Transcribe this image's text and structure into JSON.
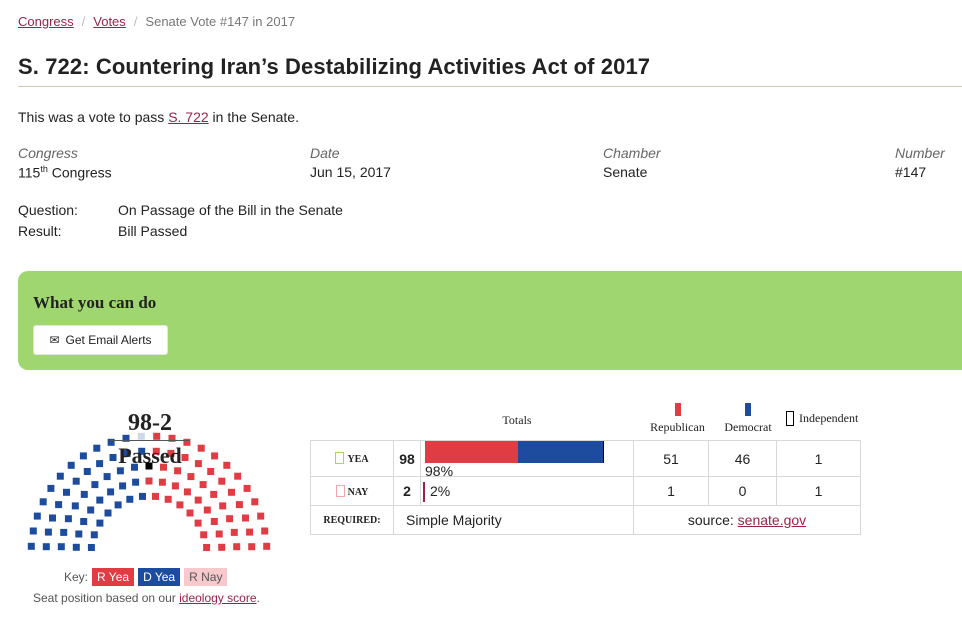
{
  "breadcrumb": {
    "items": [
      "Congress",
      "Votes"
    ],
    "current": "Senate Vote #147 in 2017",
    "separator": "/"
  },
  "title": "S. 722: Countering Iran’s Destabilizing Activities Act of 2017",
  "intro": {
    "before": "This was a vote to pass ",
    "link": "S. 722",
    "after": " in the Senate."
  },
  "meta": {
    "congress": {
      "label": "Congress",
      "value_num": "115",
      "value_sup": "th",
      "value_rest": " Congress"
    },
    "date": {
      "label": "Date",
      "value": "Jun 15, 2017"
    },
    "chamber": {
      "label": "Chamber",
      "value": "Senate"
    },
    "number": {
      "label": "Number",
      "value": "#147"
    }
  },
  "question": {
    "label": "Question:",
    "value": "On Passage of the Bill in the Senate"
  },
  "result": {
    "label": "Result:",
    "value": "Bill Passed"
  },
  "action_box": {
    "title": "What you can do",
    "button": "Get Email Alerts",
    "icon": "envelope-icon"
  },
  "tally": {
    "score": "98-2",
    "status": "Passed"
  },
  "key": {
    "label": "Key:",
    "r_yea": "R Yea",
    "d_yea": "D Yea",
    "r_nay": "R Nay"
  },
  "seat_note": {
    "before": "Seat position based on our ",
    "link": "ideology score",
    "after": "."
  },
  "table": {
    "totals_header": "Totals",
    "parties": [
      "Republican",
      "Democrat",
      "Independent"
    ],
    "yea": {
      "label": "YEA",
      "count": "98",
      "pct": "98%",
      "rep": "51",
      "dem": "46",
      "ind": "1"
    },
    "nay": {
      "label": "NAY",
      "count": "2",
      "pct": "2%",
      "rep": "1",
      "dem": "0",
      "ind": "1"
    },
    "required": {
      "label": "REQUIRED:",
      "value": "Simple Majority"
    },
    "source": {
      "prefix": "source: ",
      "link": "senate.gov"
    }
  },
  "seat_chart": {
    "rep_yea": 51,
    "dem_yea": 46,
    "ind_yea": 1,
    "rep_nay": 1,
    "ind_nay": 1
  },
  "colors": {
    "accent_link": "#9d2146",
    "republican": "#e03c43",
    "democrat": "#1d4c9e",
    "independent": "#000000",
    "rep_nay": "#f7c9cc",
    "action_bg": "#9fd66f",
    "yea_box": "#9fd66f",
    "nay_box": "#f7c9cc"
  }
}
